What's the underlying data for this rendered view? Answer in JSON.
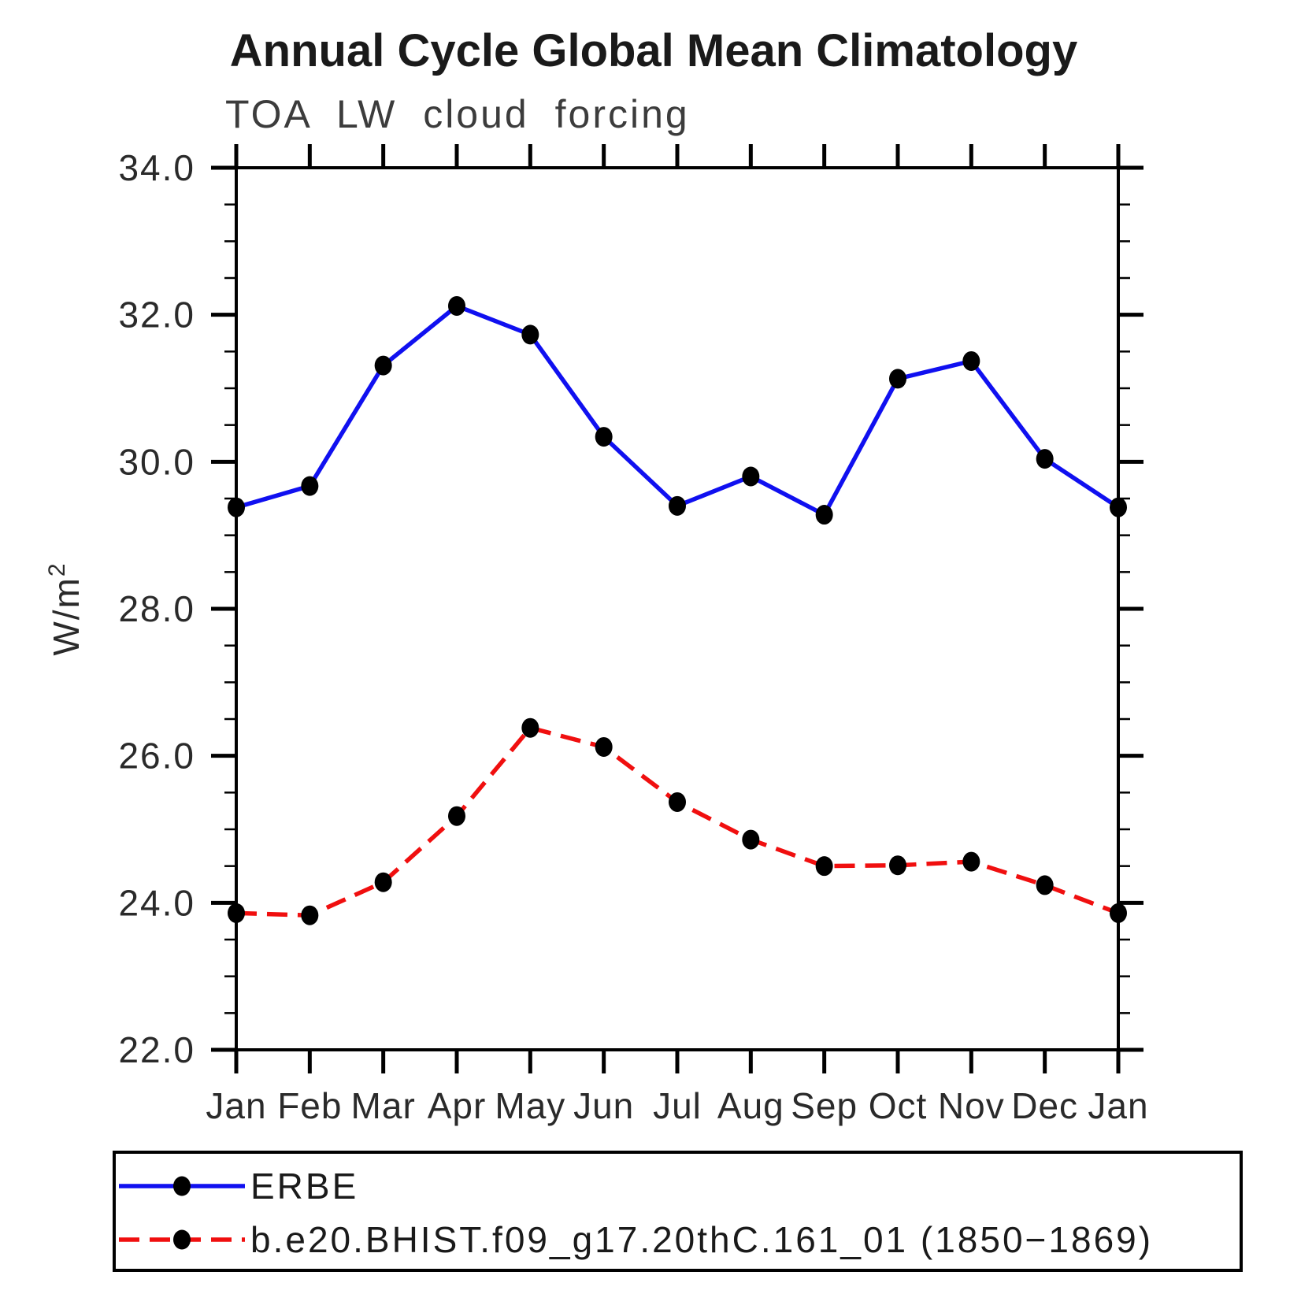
{
  "header": {
    "title": "Annual Cycle Global Mean Climatology",
    "subtitle": "TOA LW cloud forcing"
  },
  "chart_data": {
    "type": "line",
    "title": "Annual Cycle Global Mean Climatology",
    "subtitle": "TOA LW cloud forcing",
    "xlabel": "",
    "ylabel": "W/m²",
    "categories": [
      "Jan",
      "Feb",
      "Mar",
      "Apr",
      "May",
      "Jun",
      "Jul",
      "Aug",
      "Sep",
      "Oct",
      "Nov",
      "Dec",
      "Jan"
    ],
    "ylim": [
      22.0,
      34.0
    ],
    "ytick_major_interval": 2.0,
    "ytick_minor_interval": 0.5,
    "ytick_labels": [
      "22.0",
      "24.0",
      "26.0",
      "28.0",
      "30.0",
      "32.0",
      "34.0"
    ],
    "grid": false,
    "legend_position": "bottom",
    "axis_color": "#000000",
    "marker_color": "#000000",
    "series": [
      {
        "name": "ERBE",
        "color": "#1010f0",
        "style": "solid",
        "marker": "filled-circle",
        "values": [
          29.38,
          29.67,
          31.31,
          32.12,
          31.73,
          30.34,
          29.4,
          29.8,
          29.28,
          31.13,
          31.37,
          30.04,
          29.38
        ]
      },
      {
        "name": "b.e20.BHIST.f09_g17.20thC.161_01 (1850−1869)",
        "color": "#f00f0f",
        "style": "dashed",
        "marker": "filled-circle",
        "values": [
          23.86,
          23.83,
          24.28,
          25.18,
          26.38,
          26.12,
          25.37,
          24.86,
          24.5,
          24.51,
          24.56,
          24.24,
          23.86
        ]
      }
    ]
  }
}
